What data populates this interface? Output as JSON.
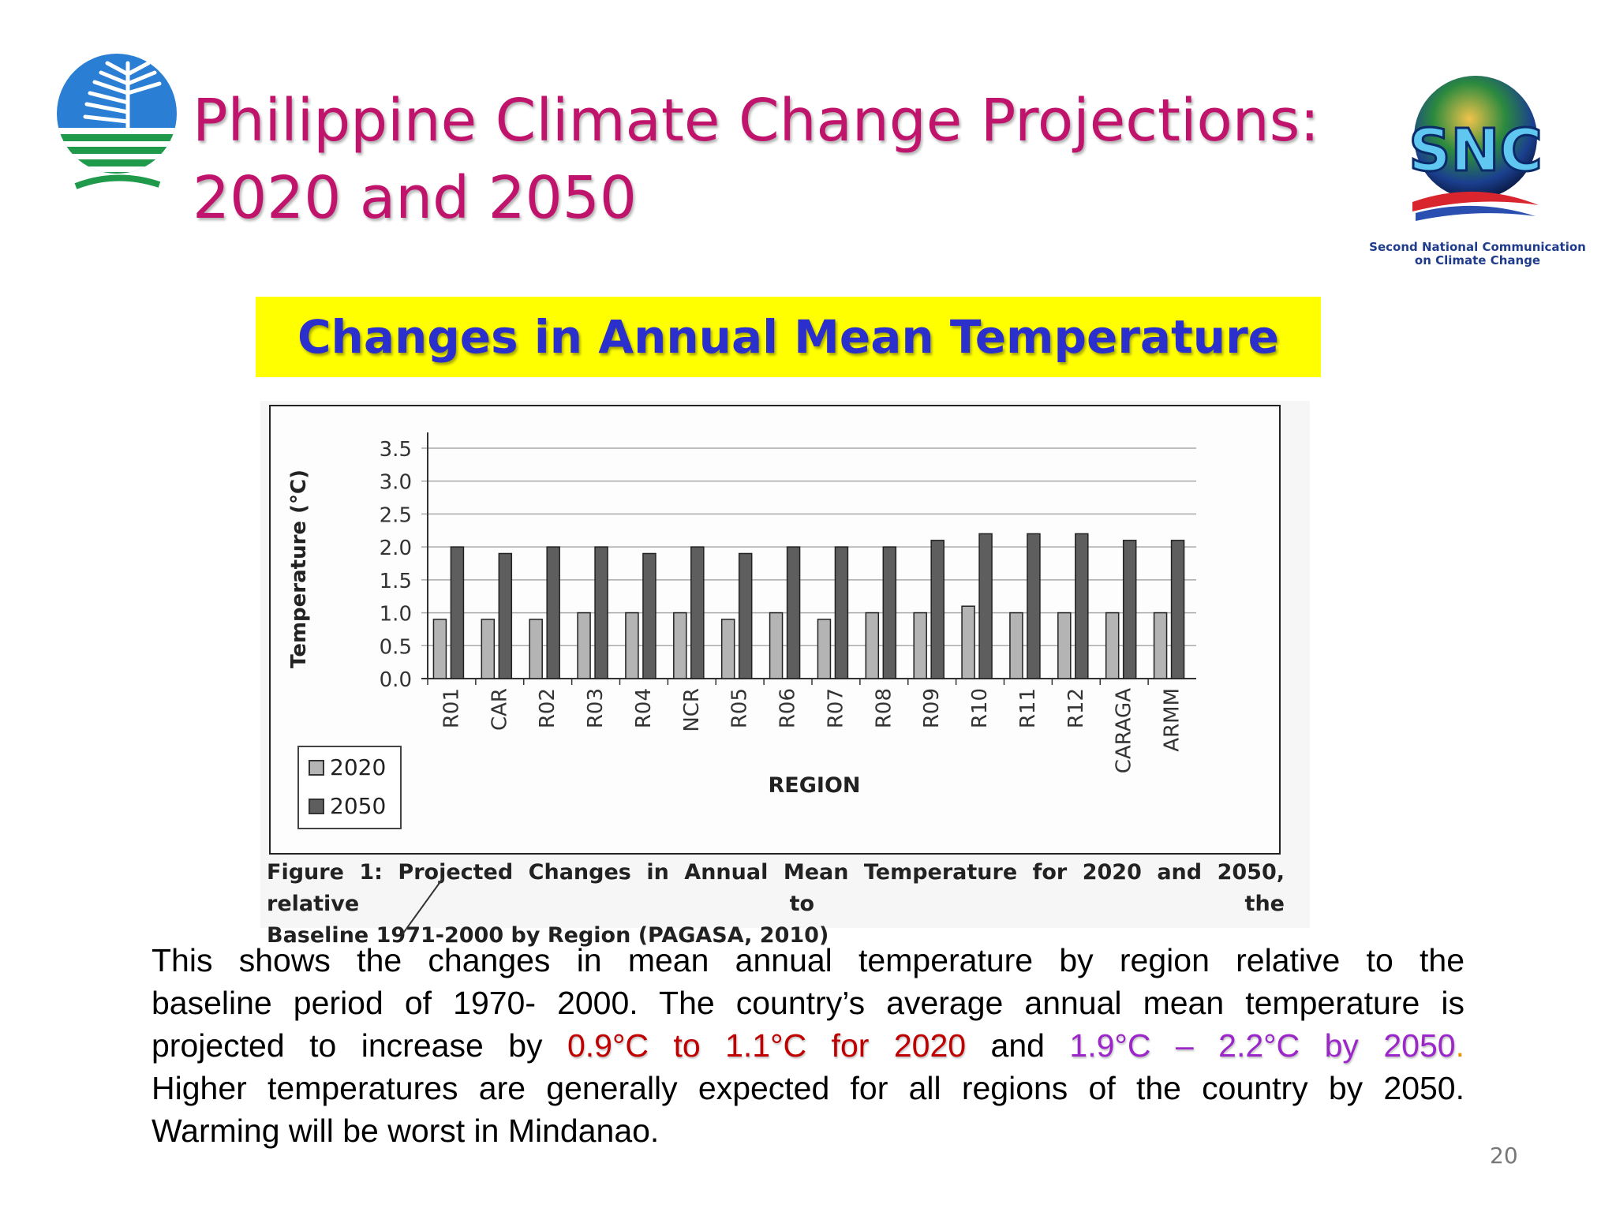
{
  "title": {
    "line1": "Philippine Climate Change Projections:",
    "line2": "2020 and 2050"
  },
  "snc_logo": {
    "text": "SNC",
    "caption_line1": "Second National Communication",
    "caption_line2": "on Climate Change"
  },
  "banner": "Changes in Annual Mean Temperature",
  "chart_data": {
    "type": "bar",
    "xlabel": "REGION",
    "ylabel": "Temperature (°C)",
    "ylim": [
      0,
      3.5
    ],
    "yticks": [
      "0.0",
      "0.5",
      "1.0",
      "1.5",
      "2.0",
      "2.5",
      "3.0",
      "3.5"
    ],
    "grid": true,
    "legend_position": "bottom-left",
    "categories": [
      "R01",
      "CAR",
      "R02",
      "R03",
      "R04",
      "NCR",
      "R05",
      "R06",
      "R07",
      "R08",
      "R09",
      "R10",
      "R11",
      "R12",
      "CARAGA",
      "ARMM"
    ],
    "series": [
      {
        "name": "2020",
        "color": "#b4b4b4",
        "values": [
          0.9,
          0.9,
          0.9,
          1.0,
          1.0,
          1.0,
          0.9,
          1.0,
          0.9,
          1.0,
          1.0,
          1.1,
          1.0,
          1.0,
          1.0,
          1.0
        ]
      },
      {
        "name": "2050",
        "color": "#5e5e5e",
        "values": [
          2.0,
          1.9,
          2.0,
          2.0,
          1.9,
          2.0,
          1.9,
          2.0,
          2.0,
          2.0,
          2.1,
          2.2,
          2.2,
          2.2,
          2.1,
          2.1
        ]
      }
    ]
  },
  "figure_caption": {
    "line1": "Figure 1: Projected Changes in Annual Mean Temperature for 2020 and 2050, relative to the",
    "line2": "Baseline 1971-2000 by Region (PAGASA, 2010)"
  },
  "body": {
    "line1": "This shows the changes in mean annual temperature by region relative to the",
    "line2": "baseline period of 1970- 2000. The country’s average annual mean temperature is",
    "line3_pre": "projected to increase by",
    "line3_red": "0.9°C to 1.1°C for 2020",
    "line3_mid": "and",
    "line3_purple": "1.9°C – 2.2°C by 2050",
    "line3_end": ".",
    "line4": "Higher temperatures are generally expected for all regions of the country by 2050.",
    "line5": "Warming will be worst in Mindanao."
  },
  "page_number": "20"
}
